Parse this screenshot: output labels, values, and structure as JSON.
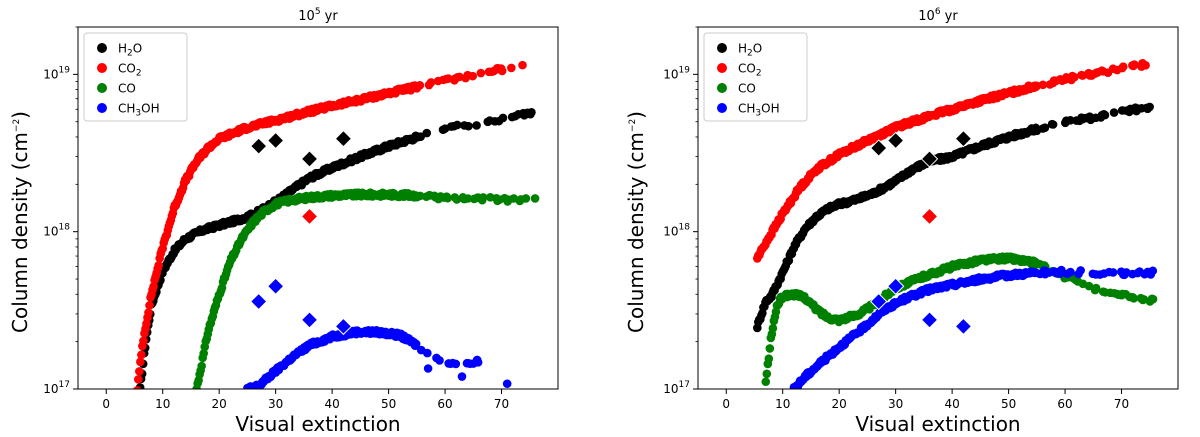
{
  "chart_data": [
    {
      "type": "scatter",
      "title_base": "10",
      "title_exp": "5",
      "title_unit": " yr",
      "xlabel": "Visual extinction",
      "ylabel_base": "Column density (cm",
      "ylabel_exp": "−2",
      "ylabel_close": ")",
      "xlim": [
        -5,
        80
      ],
      "ylim": [
        1e+17,
        2e+19
      ],
      "yscale": "log",
      "x_ticks": [
        0,
        10,
        20,
        30,
        40,
        50,
        60,
        70
      ],
      "y_ticks": [
        {
          "value": 1e+17,
          "base": "10",
          "exp": "17"
        },
        {
          "value": 1e+18,
          "base": "10",
          "exp": "18"
        },
        {
          "value": 1e+19,
          "base": "10",
          "exp": "19"
        }
      ],
      "legend_position": "top-left",
      "series": [
        {
          "name_parts": [
            "H",
            "2",
            "O"
          ],
          "color": "#000000",
          "curve": [
            [
              6,
              1e+17
            ],
            [
              7,
              2e+17
            ],
            [
              8,
              3.4e+17
            ],
            [
              10,
              5.6e+17
            ],
            [
              12,
              7.5e+17
            ],
            [
              14,
              9e+17
            ],
            [
              17,
              1.02e+18
            ],
            [
              20,
              1.1e+18
            ],
            [
              23,
              1.18e+18
            ],
            [
              26,
              1.28e+18
            ],
            [
              30,
              1.55e+18
            ],
            [
              33,
              1.85e+18
            ],
            [
              36,
              2.2e+18
            ],
            [
              40,
              2.55e+18
            ],
            [
              45,
              3e+18
            ],
            [
              50,
              3.5e+18
            ],
            [
              55,
              4e+18
            ],
            [
              60,
              4.5e+18
            ],
            [
              66,
              4.9e+18
            ],
            [
              71,
              5.3e+18
            ],
            [
              76,
              5.8e+18
            ]
          ],
          "markers": [
            [
              27,
              3.5e+18
            ],
            [
              30,
              3.8e+18
            ],
            [
              36,
              2.9e+18
            ],
            [
              42,
              3.9e+18
            ]
          ]
        },
        {
          "name_parts": [
            "CO",
            "2",
            ""
          ],
          "color": "#ff0000",
          "curve": [
            [
              5.5,
              1e+17
            ],
            [
              6.5,
              2e+17
            ],
            [
              8,
              4e+17
            ],
            [
              10,
              8e+17
            ],
            [
              12,
              1.4e+18
            ],
            [
              14,
              2.1e+18
            ],
            [
              16,
              2.8e+18
            ],
            [
              18,
              3.4e+18
            ],
            [
              20,
              3.9e+18
            ],
            [
              25,
              4.6e+18
            ],
            [
              30,
              5.1e+18
            ],
            [
              35,
              5.7e+18
            ],
            [
              40,
              6.3e+18
            ],
            [
              45,
              6.9e+18
            ],
            [
              50,
              7.6e+18
            ],
            [
              55,
              8.3e+18
            ],
            [
              60,
              9.1e+18
            ],
            [
              66,
              1e+19
            ],
            [
              71,
              1.1e+19
            ],
            [
              76,
              1.2e+19
            ]
          ],
          "markers": [
            [
              36,
              1.25e+18
            ]
          ]
        },
        {
          "name_parts": [
            "CO",
            "",
            ""
          ],
          "color": "#008000",
          "curve": [
            [
              16,
              1e+17
            ],
            [
              17,
              1.5e+17
            ],
            [
              18,
              2.3e+17
            ],
            [
              20,
              4e+17
            ],
            [
              22,
              6.5e+17
            ],
            [
              24,
              9e+17
            ],
            [
              26,
              1.15e+18
            ],
            [
              28,
              1.35e+18
            ],
            [
              30,
              1.5e+18
            ],
            [
              33,
              1.6e+18
            ],
            [
              36,
              1.65e+18
            ],
            [
              40,
              1.7e+18
            ],
            [
              45,
              1.72e+18
            ],
            [
              50,
              1.72e+18
            ],
            [
              55,
              1.7e+18
            ],
            [
              60,
              1.65e+18
            ],
            [
              66,
              1.63e+18
            ],
            [
              71,
              1.58e+18
            ],
            [
              76,
              1.63e+18
            ]
          ],
          "markers": []
        },
        {
          "name_parts": [
            "CH",
            "3",
            "OH"
          ],
          "color": "#0000ff",
          "curve": [
            [
              25,
              1e+17
            ],
            [
              27,
              1.05e+17
            ],
            [
              30,
              1.3e+17
            ],
            [
              33,
              1.6e+17
            ],
            [
              36,
              1.9e+17
            ],
            [
              40,
              2.15e+17
            ],
            [
              44,
              2.3e+17
            ],
            [
              48,
              2.3e+17
            ],
            [
              52,
              2.2e+17
            ],
            [
              55,
              1.9e+17
            ],
            [
              58,
              1.6e+17
            ],
            [
              62,
              1.4e+17
            ],
            [
              66,
              1.5e+17
            ]
          ],
          "scatter_extra": [
            [
              71,
              1.08e+17
            ],
            [
              57,
              1.35e+17
            ],
            [
              63,
              1.2e+17
            ],
            [
              65,
              1.45e+17
            ]
          ],
          "markers": [
            [
              27,
              3.6e+17
            ],
            [
              30,
              4.5e+17
            ],
            [
              36,
              2.75e+17
            ],
            [
              42,
              2.5e+17
            ]
          ]
        }
      ]
    },
    {
      "type": "scatter",
      "title_base": "10",
      "title_exp": "6",
      "title_unit": " yr",
      "xlabel": "Visual extinction",
      "xlim": [
        -5,
        80
      ],
      "ylim": [
        1e+17,
        2e+19
      ],
      "yscale": "log",
      "x_ticks": [
        0,
        10,
        20,
        30,
        40,
        50,
        60,
        70
      ],
      "y_ticks": [
        {
          "value": 1e+17,
          "base": "10",
          "exp": "17"
        },
        {
          "value": 1e+18,
          "base": "10",
          "exp": "18"
        },
        {
          "value": 1e+19,
          "base": "10",
          "exp": "19"
        }
      ],
      "legend_position": "top-left",
      "series": [
        {
          "name_parts": [
            "H",
            "2",
            "O"
          ],
          "color": "#000000",
          "curve": [
            [
              5.5,
              2.5e+17
            ],
            [
              7,
              3.6e+17
            ],
            [
              8,
              3.9e+17
            ],
            [
              10,
              5.5e+17
            ],
            [
              12,
              8e+17
            ],
            [
              14,
              1.05e+18
            ],
            [
              16,
              1.25e+18
            ],
            [
              18,
              1.4e+18
            ],
            [
              20,
              1.5e+18
            ],
            [
              23,
              1.6e+18
            ],
            [
              26,
              1.75e+18
            ],
            [
              30,
              2.1e+18
            ],
            [
              33,
              2.5e+18
            ],
            [
              36,
              2.8e+18
            ],
            [
              40,
              3e+18
            ],
            [
              45,
              3.5e+18
            ],
            [
              50,
              4e+18
            ],
            [
              55,
              4.5e+18
            ],
            [
              60,
              5e+18
            ],
            [
              66,
              5.4e+18
            ],
            [
              71,
              5.9e+18
            ],
            [
              76,
              6.2e+18
            ]
          ],
          "markers": [
            [
              27,
              3.4e+18
            ],
            [
              30,
              3.8e+18
            ],
            [
              36,
              2.9e+18
            ],
            [
              42,
              3.9e+18
            ]
          ]
        },
        {
          "name_parts": [
            "CO",
            "2",
            ""
          ],
          "color": "#ff0000",
          "curve": [
            [
              5.5,
              6.8e+17
            ],
            [
              7,
              8.5e+17
            ],
            [
              10,
              1.3e+18
            ],
            [
              13,
              1.9e+18
            ],
            [
              16,
              2.5e+18
            ],
            [
              20,
              3.1e+18
            ],
            [
              25,
              3.8e+18
            ],
            [
              30,
              4.6e+18
            ],
            [
              35,
              5.3e+18
            ],
            [
              40,
              6e+18
            ],
            [
              45,
              6.8e+18
            ],
            [
              50,
              7.6e+18
            ],
            [
              55,
              8.5e+18
            ],
            [
              60,
              9.3e+18
            ],
            [
              66,
              1.02e+19
            ],
            [
              71,
              1.1e+19
            ],
            [
              76,
              1.2e+19
            ]
          ],
          "markers": [
            [
              36,
              1.25e+18
            ]
          ]
        },
        {
          "name_parts": [
            "CO",
            "",
            ""
          ],
          "color": "#008000",
          "curve": [
            [
              7,
              1.1e+17
            ],
            [
              8,
              2.2e+17
            ],
            [
              9,
              3.4e+17
            ],
            [
              10,
              3.9e+17
            ],
            [
              12,
              4e+17
            ],
            [
              14,
              3.8e+17
            ],
            [
              16,
              3.2e+17
            ],
            [
              18,
              2.85e+17
            ],
            [
              20,
              2.75e+17
            ],
            [
              23,
              2.95e+17
            ],
            [
              26,
              3.4e+17
            ],
            [
              30,
              4.4e+17
            ],
            [
              35,
              5.2e+17
            ],
            [
              40,
              6e+17
            ],
            [
              45,
              6.6e+17
            ],
            [
              50,
              6.8e+17
            ],
            [
              55,
              6.3e+17
            ],
            [
              60,
              5.2e+17
            ],
            [
              64,
              4.5e+17
            ],
            [
              66,
              4.3e+17
            ],
            [
              71,
              4e+17
            ],
            [
              74,
              3.6e+17
            ],
            [
              76,
              3.8e+17
            ]
          ],
          "markers": []
        },
        {
          "name_parts": [
            "CH",
            "3",
            "OH"
          ],
          "color": "#0000ff",
          "curve": [
            [
              12,
              1e+17
            ],
            [
              14,
              1.2e+17
            ],
            [
              17,
              1.5e+17
            ],
            [
              20,
              1.85e+17
            ],
            [
              24,
              2.4e+17
            ],
            [
              28,
              3.2e+17
            ],
            [
              32,
              3.8e+17
            ],
            [
              36,
              4.3e+17
            ],
            [
              40,
              4.6e+17
            ],
            [
              45,
              5e+17
            ],
            [
              50,
              5.3e+17
            ],
            [
              55,
              5.5e+17
            ],
            [
              60,
              5.55e+17
            ],
            [
              66,
              5.5e+17
            ],
            [
              71,
              5.4e+17
            ],
            [
              76,
              5.5e+17
            ]
          ],
          "markers": [
            [
              27,
              3.6e+17
            ],
            [
              30,
              4.5e+17
            ],
            [
              36,
              2.75e+17
            ],
            [
              42,
              2.5e+17
            ]
          ]
        }
      ]
    }
  ]
}
